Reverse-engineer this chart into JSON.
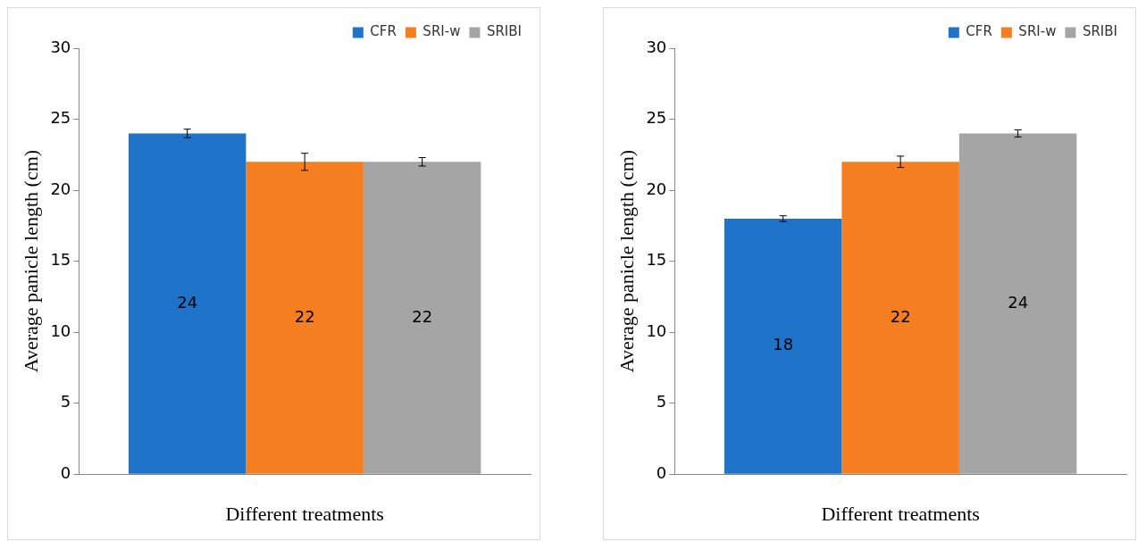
{
  "chart_data": [
    {
      "type": "bar",
      "categories": [
        null
      ],
      "xlabel": "Different treatments",
      "ylabel": "Average panicle length (cm)",
      "ylim": [
        0,
        30
      ],
      "yticks": [
        0,
        5,
        10,
        15,
        20,
        25,
        30
      ],
      "grid": false,
      "legend": "top right",
      "data_labels": true,
      "series": [
        {
          "name": "CFR",
          "color": "#1f73c8",
          "values": [
            24
          ],
          "errors": [
            0.3
          ]
        },
        {
          "name": "SRI-w",
          "color": "#f57f20",
          "values": [
            22
          ],
          "errors": [
            0.6
          ]
        },
        {
          "name": "SRIBI",
          "color": "#a5a5a5",
          "values": [
            22
          ],
          "errors": [
            0.3
          ]
        }
      ]
    },
    {
      "type": "bar",
      "categories": [
        null
      ],
      "xlabel": "Different treatments",
      "ylabel": "Average panicle length (cm)",
      "ylim": [
        0,
        30
      ],
      "yticks": [
        0,
        5,
        10,
        15,
        20,
        25,
        30
      ],
      "grid": false,
      "legend": "top right",
      "data_labels": true,
      "series": [
        {
          "name": "CFR",
          "color": "#1f73c8",
          "values": [
            18
          ],
          "errors": [
            0.2
          ]
        },
        {
          "name": "SRI-w",
          "color": "#f57f20",
          "values": [
            22
          ],
          "errors": [
            0.4
          ]
        },
        {
          "name": "SRIBI",
          "color": "#a5a5a5",
          "values": [
            24
          ],
          "errors": [
            0.25
          ]
        }
      ]
    }
  ]
}
